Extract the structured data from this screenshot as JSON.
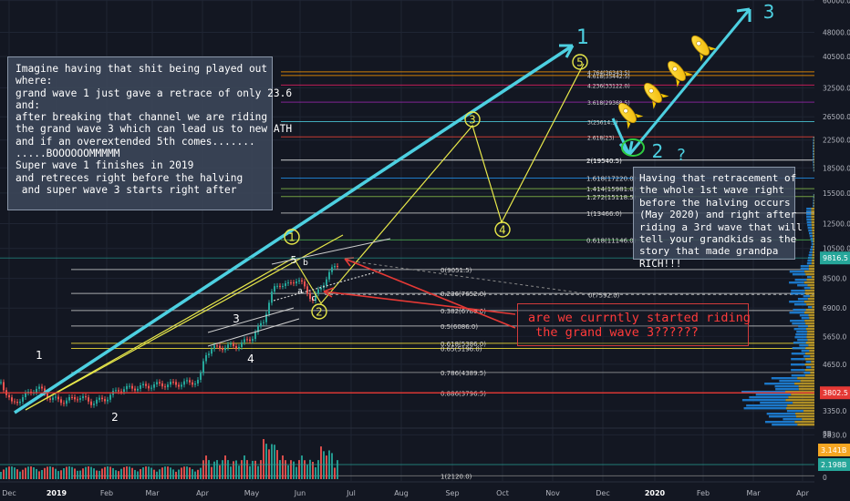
{
  "chart_data": {
    "type": "line",
    "title": "",
    "xlabel": "",
    "ylabel": "",
    "ylim": [
      2800,
      60000
    ],
    "log_scale": true,
    "grid": true,
    "x_ticks": [
      "Dec",
      "2019",
      "Feb",
      "Mar",
      "Apr",
      "May",
      "Jun",
      "Jul",
      "Aug",
      "Sep",
      "Oct",
      "Nov",
      "Dec",
      "2020",
      "Feb",
      "Mar",
      "Apr"
    ],
    "price_axis_ticks": [
      "60000.0",
      "48000.0",
      "40500.0",
      "32500.0",
      "26500.0",
      "22500.0",
      "18500.0",
      "15500.0",
      "12500.0",
      "10500.0",
      "8500.0",
      "6900.0",
      "5650.0",
      "4650.0",
      "3350.0",
      "2830.0"
    ],
    "price_axis_badges": [
      {
        "label": "9816.5",
        "color": "#26a69a"
      },
      {
        "label": "3802.5",
        "color": "#e53935"
      }
    ],
    "volume_axis_ticks": [
      "8B",
      "0"
    ],
    "volume_axis_badges": [
      {
        "label": "3.141B",
        "color": "#f5a623"
      },
      {
        "label": "2.198B",
        "color": "#26a69a"
      }
    ],
    "fib_levels": [
      {
        "label": "1(2120.0)",
        "value": 2120
      },
      {
        "label": "0.886(3796.5)",
        "value": 3796.5
      },
      {
        "label": "0.786(4389.5)",
        "value": 4389.5
      },
      {
        "label": "0.65(5196.0)",
        "value": 5196
      },
      {
        "label": "0.618(5386.0)",
        "value": 5386
      },
      {
        "label": "0.5(6086.0)",
        "value": 6086
      },
      {
        "label": "0.382(6786.0)",
        "value": 6786
      },
      {
        "label": "0.236(7652.0)",
        "value": 7652
      },
      {
        "label": "0(9051.5)",
        "value": 9051.5
      },
      {
        "label": "0(7592.0)",
        "value": 7592
      },
      {
        "label": "0.618(11146.0)",
        "value": 11146
      },
      {
        "label": "1(13466.0)",
        "value": 13466
      },
      {
        "label": "1.272(15118.5)",
        "value": 15118.5
      },
      {
        "label": "1.414(15981.0)",
        "value": 15981
      },
      {
        "label": "1.618(17220.0)",
        "value": 17220
      },
      {
        "label": "2(19540.5)",
        "value": 19540.5
      },
      {
        "label": "2.618(23)",
        "value": 23000
      },
      {
        "label": "3(25614.5)",
        "value": 25614.5
      },
      {
        "label": "3.618(29368.5)",
        "value": 29368.5
      },
      {
        "label": "4.236(33122.0)",
        "value": 33122
      },
      {
        "label": "4.618(35442.5)",
        "value": 35442.5
      },
      {
        "label": "4.764(36343.5)",
        "value": 36343.5
      }
    ],
    "wave_labels": [
      "1",
      "2",
      "3",
      "4",
      "5",
      "a",
      "b",
      "c"
    ],
    "circled_wave_labels": [
      "1",
      "2",
      "3",
      "4",
      "5"
    ],
    "big_wave_labels": [
      "1",
      "2",
      "3"
    ],
    "question_mark": "?",
    "annotation_left": "Imagine having that shit being played out\nwhere:\ngrand wave 1 just gave a retrace of only 23.6\nand:\nafter breaking that channel we are riding\nthe grand wave 3 which can lead us to new ATH\nand if an overextended 5th comes.......\n.....BOOOOOOMMMMM\nSuper wave 1 finishes in 2019\nand retreces right before the halving\n and super wave 3 starts right after",
    "annotation_right": "Having that retracement of\nthe whole 1st wave right\nbefore the halving occurs\n(May 2020) and right after\nriding a 3rd wave that will\ntell your grandkids as the\nstory that made grandpa\nRICH!!!",
    "callout_text": "are we currntly started riding\n the grand wave 3??????",
    "colors": {
      "background": "#131722",
      "up": "#26a69a",
      "down": "#ef5350",
      "channel": "#4dd0e1",
      "projection": "#e8e84a",
      "callout": "#ff3b3b"
    }
  }
}
